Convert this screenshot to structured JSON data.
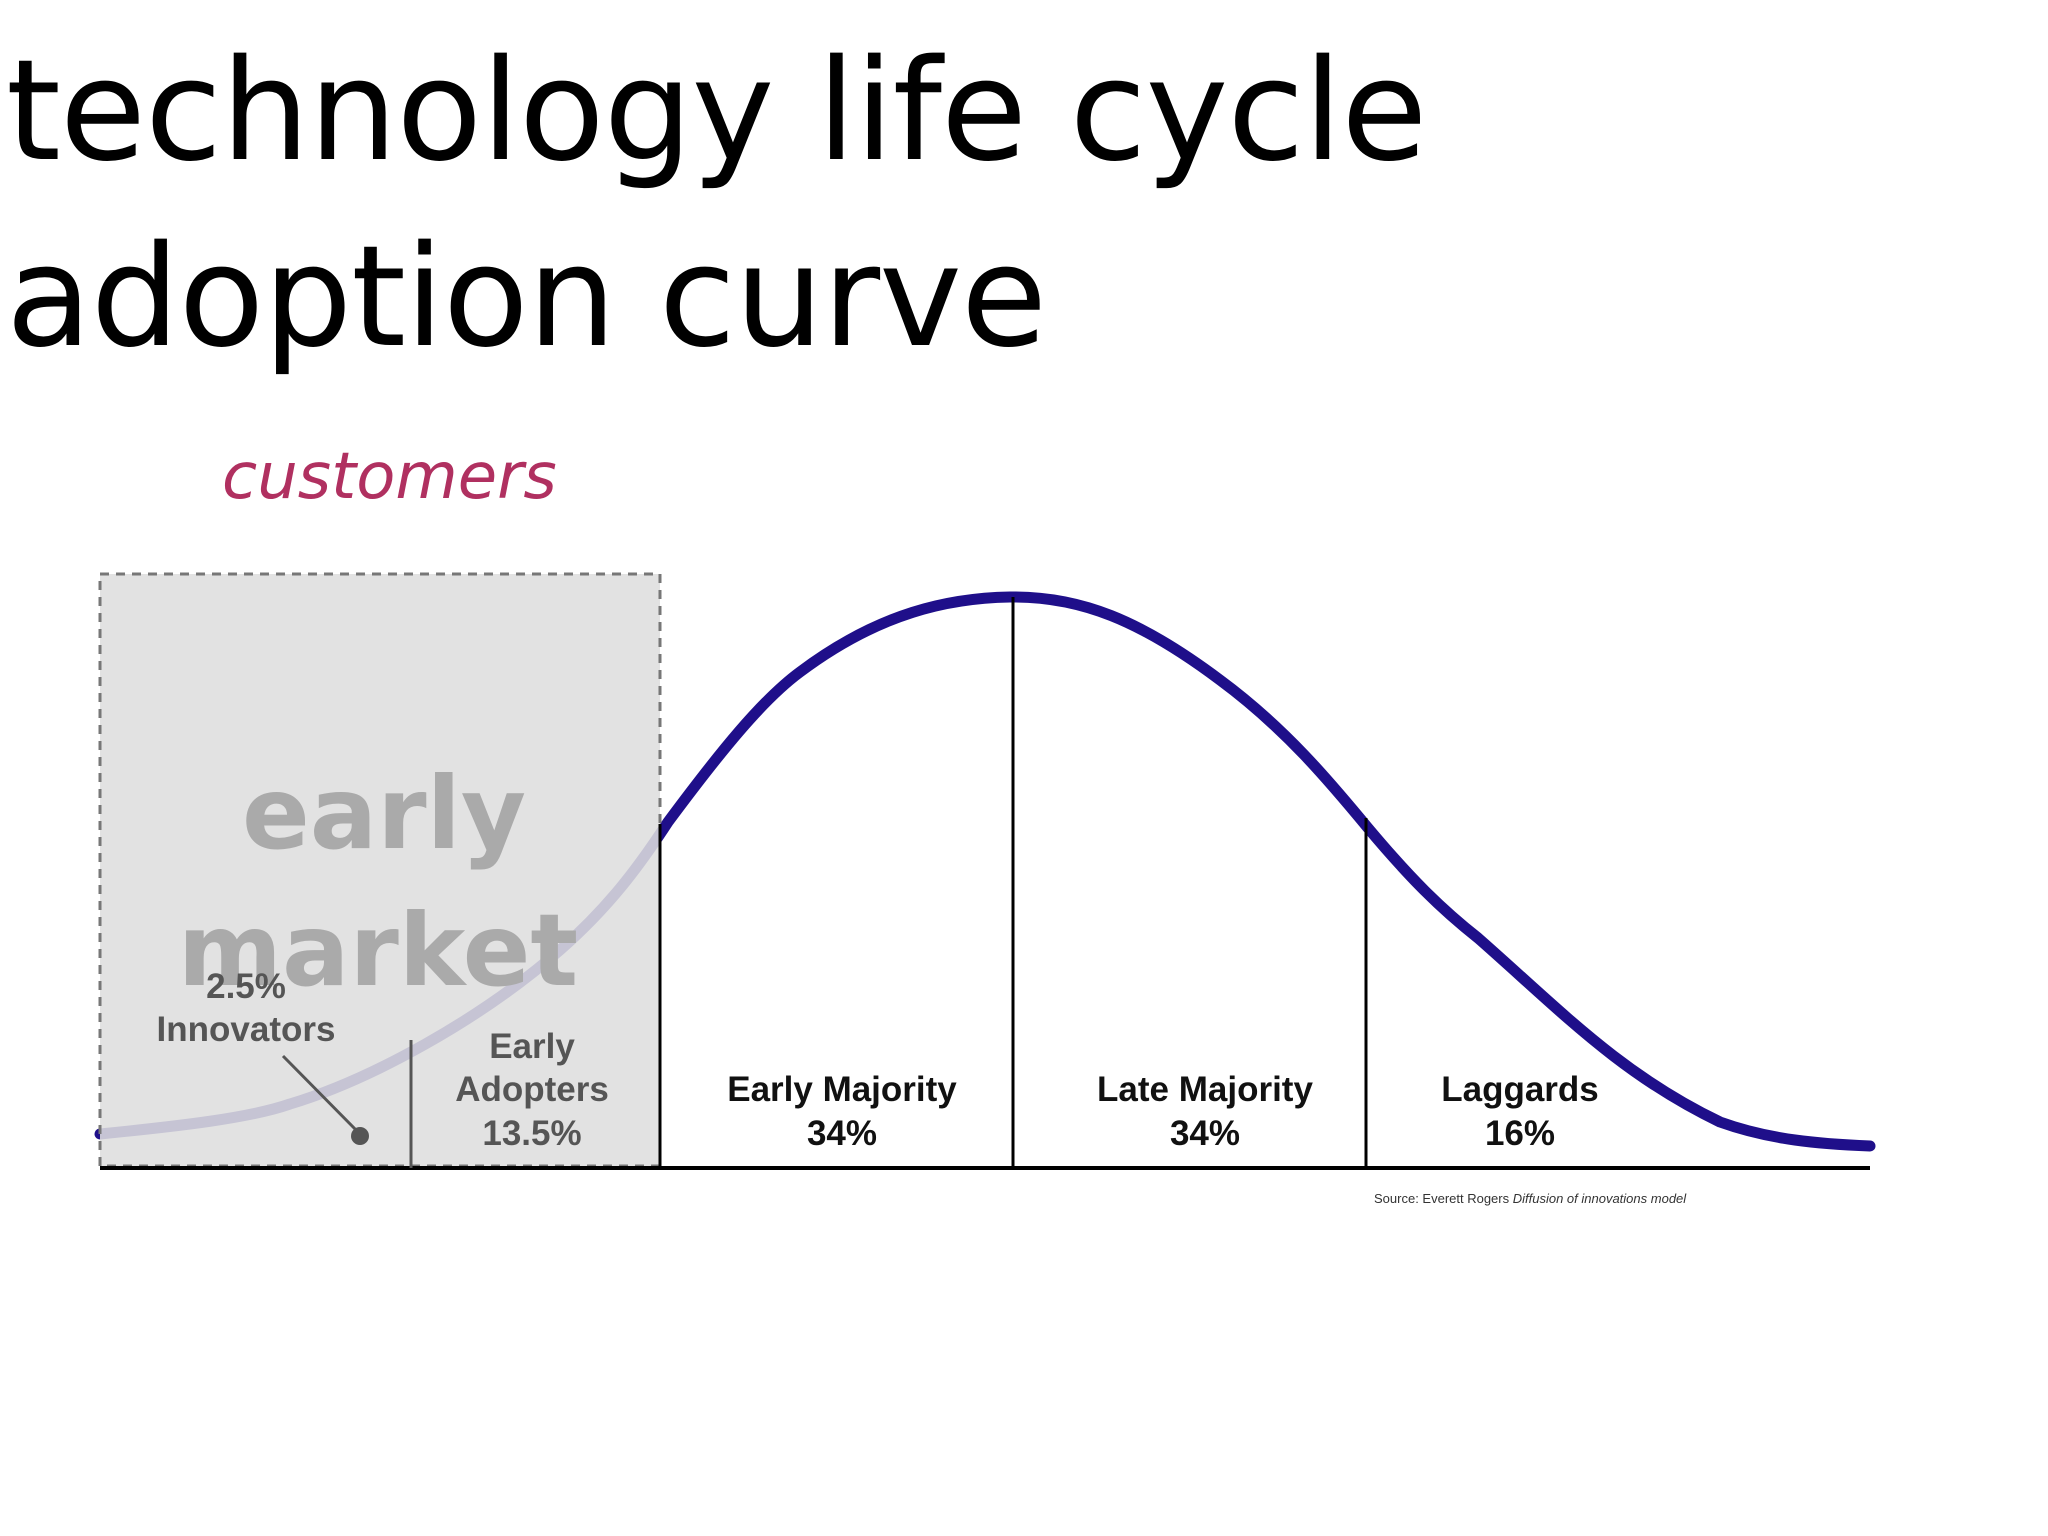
{
  "slide": {
    "title_line_1": "technology life cycle",
    "title_line_2": "adoption curve",
    "subtitle": "customers"
  },
  "early_market": {
    "line_1": "early",
    "line_2": "market"
  },
  "segments": [
    {
      "name": "Innovators",
      "percent": "2.5%"
    },
    {
      "name_line_1": "Early",
      "name_line_2": "Adopters",
      "percent": "13.5%"
    },
    {
      "name": "Early Majority",
      "percent": "34%"
    },
    {
      "name": "Late Majority",
      "percent": "34%"
    },
    {
      "name": "Laggards",
      "percent": "16%"
    }
  ],
  "source": {
    "prefix": "Source: Everett Rogers ",
    "work": "Diffusion of innovations model"
  },
  "colors": {
    "title": "#000000",
    "subtitle": "#b03060",
    "curve": "#1f0f8a",
    "early_market_fill": "#dedede",
    "early_market_border": "#777777",
    "early_market_text": "#aaaaaa",
    "segment_text": "#111111",
    "shaded_segment_text": "#555555"
  }
}
